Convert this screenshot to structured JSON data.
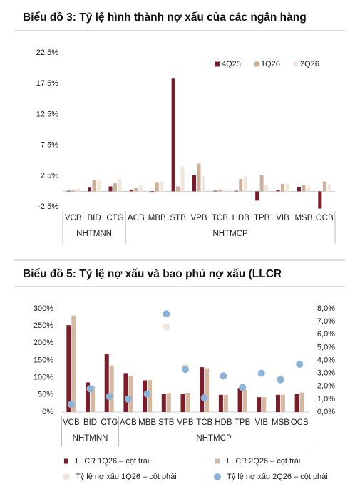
{
  "chart_data": [
    {
      "type": "bar",
      "title": "Biểu đồ 3: Tỷ lệ hình thành nợ xấu của các ngân hàng",
      "categories": [
        "VCB",
        "BID",
        "CTG",
        "ACB",
        "MBB",
        "STB",
        "VPB",
        "TCB",
        "HDB",
        "TPB",
        "VIB",
        "MSB",
        "OCB"
      ],
      "groups": [
        {
          "name": "NHTMNN",
          "count": 3
        },
        {
          "name": "NHTMCP",
          "count": 10
        }
      ],
      "series": [
        {
          "name": "4Q25",
          "color": "#7b1c2a",
          "values": [
            0.1,
            0.6,
            0.8,
            0.3,
            -0.2,
            18.3,
            2.6,
            0.1,
            0.1,
            -1.5,
            0.2,
            0.7,
            -2.8
          ]
        },
        {
          "name": "1Q26",
          "color": "#cdb09a",
          "values": [
            0.2,
            1.8,
            1.3,
            0.5,
            1.4,
            0.8,
            4.5,
            0.3,
            2.0,
            2.6,
            1.2,
            1.1,
            1.6
          ]
        },
        {
          "name": "2Q26",
          "color": "#f1e6dc",
          "values": [
            0.4,
            1.7,
            2.0,
            1.0,
            1.5,
            4.0,
            2.5,
            0.2,
            2.4,
            1.0,
            1.3,
            0.8,
            1.1
          ]
        }
      ],
      "ylim": [
        -2.5,
        22.5
      ],
      "yticks": [
        {
          "value": -2.5,
          "label": "-2,5%"
        },
        {
          "value": 2.5,
          "label": "2,5%"
        },
        {
          "value": 7.5,
          "label": "7,5%"
        },
        {
          "value": 12.5,
          "label": "12,5%"
        },
        {
          "value": 17.5,
          "label": "17,5%"
        },
        {
          "value": 22.5,
          "label": "22,5%"
        }
      ],
      "legend": "top-right"
    },
    {
      "type": "bar",
      "title": "Biểu đồ 5: Tỷ lệ nợ xấu và bao phủ nợ xấu (LLCR",
      "categories": [
        "VCB",
        "BID",
        "CTG",
        "ACB",
        "MBB",
        "STB",
        "VPB",
        "TCB",
        "HDB",
        "TPB",
        "VIB",
        "MSB",
        "OCB"
      ],
      "groups": [
        {
          "name": "NHTMNN",
          "count": 3
        },
        {
          "name": "NHTMCP",
          "count": 10
        }
      ],
      "series": [
        {
          "name": "LLCR 1Q26 – cột trái",
          "color": "#7b1c2a",
          "values": [
            252,
            86,
            168,
            113,
            92,
            53,
            52,
            130,
            50,
            70,
            43,
            50,
            52
          ]
        },
        {
          "name": "LLCR 2Q26 – cột trái",
          "color": "#d4b8a2",
          "values": [
            280,
            75,
            135,
            105,
            93,
            55,
            56,
            127,
            50,
            65,
            43,
            50,
            57
          ]
        },
        {
          "name": "Tỷ lệ nợ xấu 1Q26 – cột phải",
          "color": "#f2e6dc",
          "type": "scatter",
          "axis": "y2",
          "values": [
            0.6,
            1.8,
            1.2,
            1.0,
            1.4,
            6.6,
            3.5,
            1.1,
            2.8,
            1.9,
            3.0,
            2.6,
            3.7
          ]
        },
        {
          "name": "Tỷ lệ nợ xấu 2Q26 – cột phải",
          "color": "#8db4d6",
          "type": "scatter",
          "axis": "y2",
          "values": [
            0.6,
            1.8,
            1.2,
            1.0,
            1.4,
            7.6,
            3.3,
            1.1,
            2.8,
            1.9,
            3.0,
            2.5,
            3.7
          ]
        }
      ],
      "ylim": [
        0,
        300
      ],
      "yticks": [
        {
          "value": 0,
          "label": "0%"
        },
        {
          "value": 50,
          "label": "50%"
        },
        {
          "value": 100,
          "label": "100%"
        },
        {
          "value": 150,
          "label": "150%"
        },
        {
          "value": 200,
          "label": "200%"
        },
        {
          "value": 250,
          "label": "250%"
        },
        {
          "value": 300,
          "label": "300%"
        }
      ],
      "y2lim": [
        0,
        8
      ],
      "y2ticks": [
        {
          "value": 0,
          "label": "0,0%"
        },
        {
          "value": 1,
          "label": "1,0%"
        },
        {
          "value": 2,
          "label": "2,0%"
        },
        {
          "value": 3,
          "label": "3,0%"
        },
        {
          "value": 4,
          "label": "4,0%"
        },
        {
          "value": 5,
          "label": "5,0%"
        },
        {
          "value": 6,
          "label": "6,0%"
        },
        {
          "value": 7,
          "label": "7,0%"
        },
        {
          "value": 8,
          "label": "8,0%"
        }
      ],
      "legend": "bottom"
    }
  ]
}
